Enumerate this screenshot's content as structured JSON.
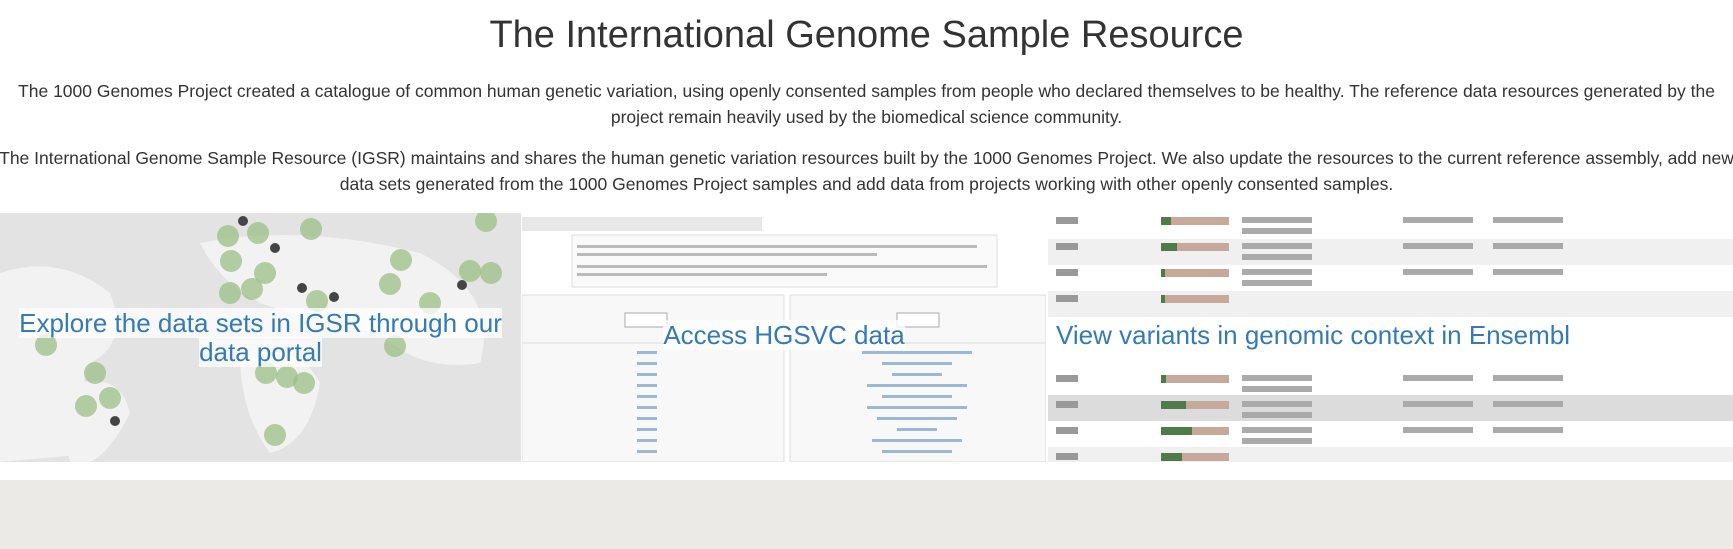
{
  "header": {
    "title": "The International Genome Sample Resource"
  },
  "intro": {
    "paragraphs": [
      "The 1000 Genomes Project created a catalogue of common human genetic variation, using openly consented samples from people who declared themselves to be healthy. The reference data resources generated by the project remain heavily used by the biomedical science community.",
      "The International Genome Sample Resource (IGSR) maintains and shares the human genetic variation resources built by the 1000 Genomes Project. We also update the resources to the current reference assembly, add new data sets generated from the 1000 Genomes Project samples and add data from projects working with other openly consented samples."
    ]
  },
  "tiles": [
    {
      "caption": "Explore the data sets in IGSR through our data portal"
    },
    {
      "caption": "Access HGSVC data"
    },
    {
      "caption": "View variants in genomic context in Ensembl"
    }
  ]
}
